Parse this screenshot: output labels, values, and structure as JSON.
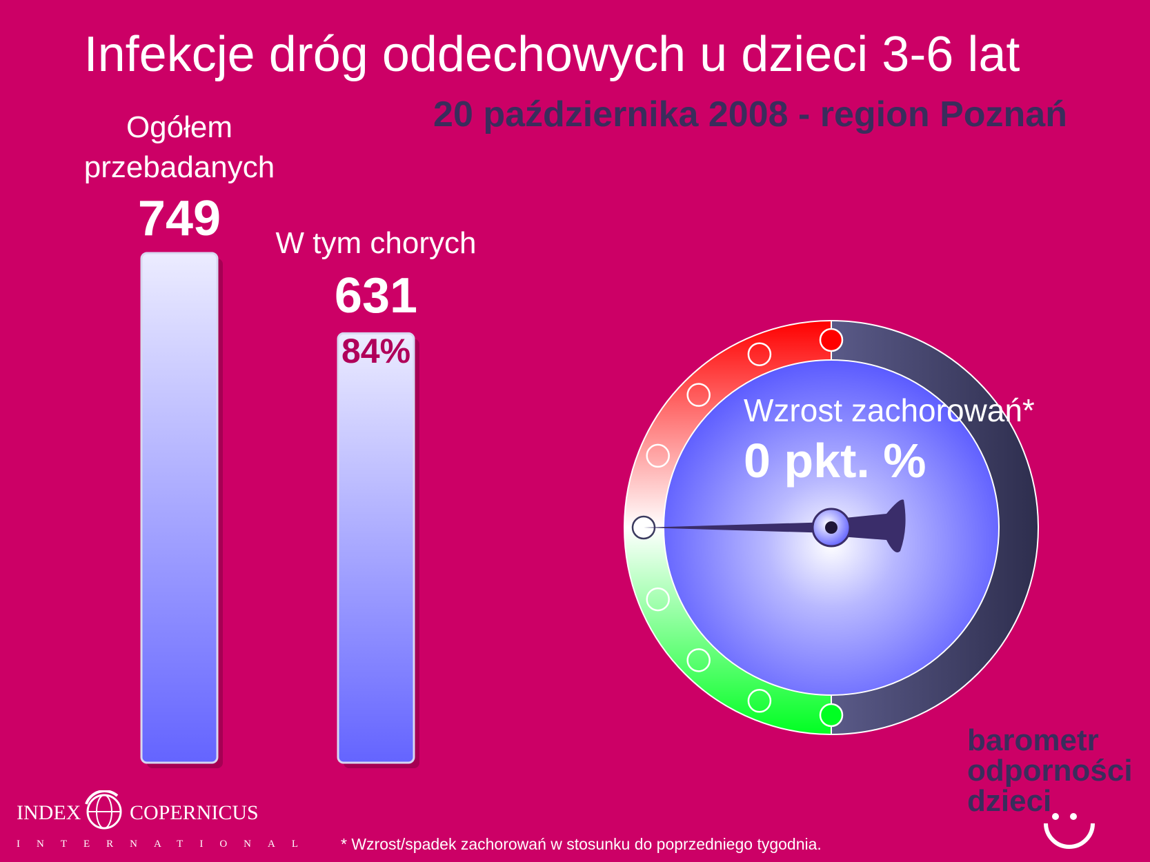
{
  "header": {
    "title": "Infekcje dróg oddechowych u dzieci 3-6 lat",
    "subtitle": "20 października 2008 - region Poznań"
  },
  "chart_data": {
    "type": "bar",
    "categories": [
      "Ogółem przebadanych",
      "W tym chorych"
    ],
    "values": [
      749,
      631
    ],
    "label_lines": [
      [
        "Ogółem",
        "przebadanych"
      ],
      [
        "W tym chorych"
      ]
    ],
    "value_labels": [
      "749",
      "631"
    ],
    "percent_label": "84%",
    "colors": {
      "bar_top": "#e8e8ff",
      "bar_bottom": "#6a6aff",
      "background": "#cc0066"
    }
  },
  "gauge": {
    "title": "Wzrost zachorowań*",
    "value_label": "0 pkt. %",
    "value": 0,
    "range": [
      -100,
      100
    ],
    "colors": {
      "top": "#ff0000",
      "mid": "#ffffff",
      "bottom": "#00ff22",
      "outer": "#3a3a5e",
      "dial": "#6a6aff"
    }
  },
  "footnote": "* Wzrost/spadek zachorowań w stosunku do poprzedniego tygodnia.",
  "brand": {
    "lines": [
      "barometr",
      "odporności",
      "dzieci"
    ],
    "icon": "smiley-icon"
  },
  "logo": {
    "left": "INDEX",
    "right": "COPERNICUS",
    "sub": "INTERNATIONAL",
    "icon": "globe-icon"
  }
}
